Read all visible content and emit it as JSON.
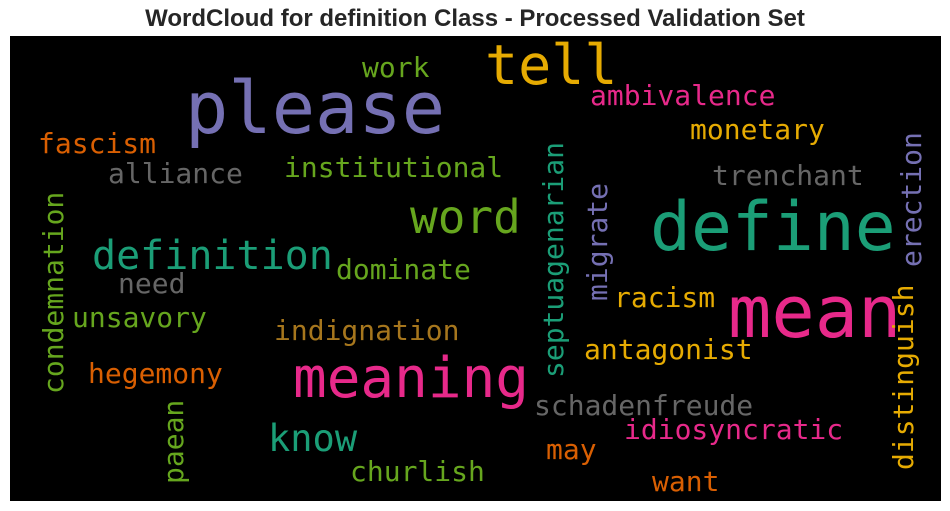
{
  "chart_data": {
    "type": "wordcloud",
    "title": "WordCloud for definition Class - Processed Validation Set",
    "background": "#000000",
    "words": [
      {
        "text": "please",
        "color": "#7570b3",
        "orientation": "horizontal"
      },
      {
        "text": "tell",
        "color": "#e6ab02",
        "orientation": "horizontal"
      },
      {
        "text": "define",
        "color": "#1b9e77",
        "orientation": "horizontal"
      },
      {
        "text": "mean",
        "color": "#e7298a",
        "orientation": "horizontal"
      },
      {
        "text": "meaning",
        "color": "#e7298a",
        "orientation": "horizontal"
      },
      {
        "text": "word",
        "color": "#66a61e",
        "orientation": "horizontal"
      },
      {
        "text": "definition",
        "color": "#1b9e77",
        "orientation": "horizontal"
      },
      {
        "text": "know",
        "color": "#1b9e77",
        "orientation": "horizontal"
      },
      {
        "text": "work",
        "color": "#66a61e",
        "orientation": "horizontal"
      },
      {
        "text": "ambivalence",
        "color": "#e7298a",
        "orientation": "horizontal"
      },
      {
        "text": "monetary",
        "color": "#e6ab02",
        "orientation": "horizontal"
      },
      {
        "text": "fascism",
        "color": "#d95f02",
        "orientation": "horizontal"
      },
      {
        "text": "alliance",
        "color": "#666666",
        "orientation": "horizontal"
      },
      {
        "text": "institutional",
        "color": "#66a61e",
        "orientation": "horizontal"
      },
      {
        "text": "trenchant",
        "color": "#666666",
        "orientation": "horizontal"
      },
      {
        "text": "dominate",
        "color": "#66a61e",
        "orientation": "horizontal"
      },
      {
        "text": "need",
        "color": "#666666",
        "orientation": "horizontal"
      },
      {
        "text": "unsavory",
        "color": "#66a61e",
        "orientation": "horizontal"
      },
      {
        "text": "indignation",
        "color": "#a6761d",
        "orientation": "horizontal"
      },
      {
        "text": "racism",
        "color": "#e6ab02",
        "orientation": "horizontal"
      },
      {
        "text": "antagonist",
        "color": "#e6ab02",
        "orientation": "horizontal"
      },
      {
        "text": "hegemony",
        "color": "#d95f02",
        "orientation": "horizontal"
      },
      {
        "text": "schadenfreude",
        "color": "#666666",
        "orientation": "horizontal"
      },
      {
        "text": "idiosyncratic",
        "color": "#e7298a",
        "orientation": "horizontal"
      },
      {
        "text": "may",
        "color": "#d95f02",
        "orientation": "horizontal"
      },
      {
        "text": "churlish",
        "color": "#66a61e",
        "orientation": "horizontal"
      },
      {
        "text": "want",
        "color": "#d95f02",
        "orientation": "horizontal"
      },
      {
        "text": "condemnation",
        "color": "#66a61e",
        "orientation": "vertical"
      },
      {
        "text": "paean",
        "color": "#66a61e",
        "orientation": "vertical"
      },
      {
        "text": "septuagenarian",
        "color": "#1b9e77",
        "orientation": "vertical"
      },
      {
        "text": "migrate",
        "color": "#7570b3",
        "orientation": "vertical"
      },
      {
        "text": "distinguish",
        "color": "#e6ab02",
        "orientation": "vertical"
      },
      {
        "text": "erection",
        "color": "#7570b3",
        "orientation": "vertical"
      }
    ]
  }
}
